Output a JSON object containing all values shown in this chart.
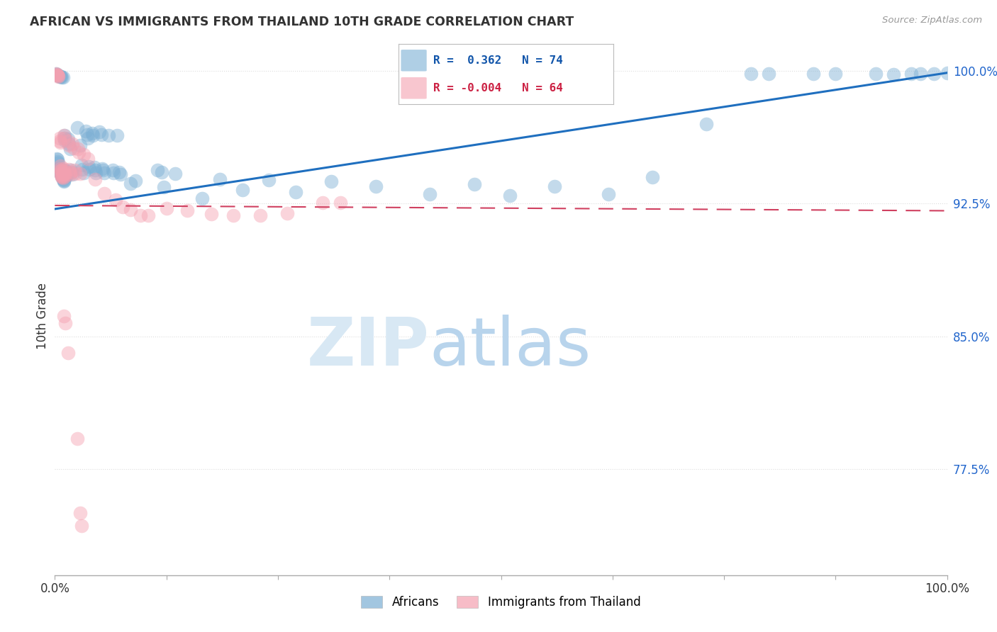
{
  "title": "AFRICAN VS IMMIGRANTS FROM THAILAND 10TH GRADE CORRELATION CHART",
  "source": "Source: ZipAtlas.com",
  "ylabel": "10th Grade",
  "xlim": [
    0.0,
    1.0
  ],
  "ylim": [
    0.715,
    1.008
  ],
  "yticks": [
    0.775,
    0.85,
    0.925,
    1.0
  ],
  "ytick_labels": [
    "77.5%",
    "85.0%",
    "92.5%",
    "100.0%"
  ],
  "legend_blue_r": "0.362",
  "legend_blue_n": "74",
  "legend_pink_r": "-0.004",
  "legend_pink_n": "64",
  "legend_blue_label": "Africans",
  "legend_pink_label": "Immigrants from Thailand",
  "blue_color": "#7BAFD4",
  "pink_color": "#F4A0B0",
  "line_blue_color": "#1F6FBF",
  "line_pink_color": "#D04060",
  "watermark_zip": "ZIP",
  "watermark_atlas": "atlas",
  "blue_line": [
    [
      0.0,
      0.922
    ],
    [
      1.0,
      0.999
    ]
  ],
  "pink_line": [
    [
      0.0,
      0.924
    ],
    [
      1.0,
      0.921
    ]
  ],
  "blue_dots": [
    [
      0.001,
      0.9985
    ],
    [
      0.002,
      0.998
    ],
    [
      0.003,
      0.9975
    ],
    [
      0.004,
      0.9975
    ],
    [
      0.005,
      0.997
    ],
    [
      0.006,
      0.997
    ],
    [
      0.007,
      0.997
    ],
    [
      0.008,
      0.9965
    ],
    [
      0.009,
      0.9965
    ],
    [
      0.002,
      0.9505
    ],
    [
      0.003,
      0.95
    ],
    [
      0.003,
      0.949
    ],
    [
      0.004,
      0.948
    ],
    [
      0.005,
      0.945
    ],
    [
      0.006,
      0.944
    ],
    [
      0.006,
      0.9435
    ],
    [
      0.007,
      0.942
    ],
    [
      0.007,
      0.9415
    ],
    [
      0.008,
      0.941
    ],
    [
      0.008,
      0.9405
    ],
    [
      0.009,
      0.9395
    ],
    [
      0.009,
      0.939
    ],
    [
      0.01,
      0.9385
    ],
    [
      0.01,
      0.938
    ],
    [
      0.01,
      0.9375
    ],
    [
      0.011,
      0.9635
    ],
    [
      0.011,
      0.962
    ],
    [
      0.011,
      0.961
    ],
    [
      0.011,
      0.944
    ],
    [
      0.012,
      0.9435
    ],
    [
      0.012,
      0.943
    ],
    [
      0.012,
      0.942
    ],
    [
      0.013,
      0.9415
    ],
    [
      0.013,
      0.941
    ],
    [
      0.015,
      0.9615
    ],
    [
      0.016,
      0.959
    ],
    [
      0.017,
      0.956
    ],
    [
      0.018,
      0.944
    ],
    [
      0.019,
      0.943
    ],
    [
      0.02,
      0.9415
    ],
    [
      0.025,
      0.968
    ],
    [
      0.028,
      0.958
    ],
    [
      0.03,
      0.947
    ],
    [
      0.031,
      0.9445
    ],
    [
      0.032,
      0.9425
    ],
    [
      0.035,
      0.966
    ],
    [
      0.036,
      0.964
    ],
    [
      0.037,
      0.962
    ],
    [
      0.038,
      0.946
    ],
    [
      0.039,
      0.9445
    ],
    [
      0.042,
      0.965
    ],
    [
      0.043,
      0.9635
    ],
    [
      0.044,
      0.9455
    ],
    [
      0.045,
      0.944
    ],
    [
      0.046,
      0.9425
    ],
    [
      0.05,
      0.9655
    ],
    [
      0.052,
      0.964
    ],
    [
      0.053,
      0.945
    ],
    [
      0.054,
      0.944
    ],
    [
      0.055,
      0.9425
    ],
    [
      0.06,
      0.9635
    ],
    [
      0.065,
      0.944
    ],
    [
      0.066,
      0.9425
    ],
    [
      0.07,
      0.9635
    ],
    [
      0.072,
      0.943
    ],
    [
      0.074,
      0.9415
    ],
    [
      0.085,
      0.9365
    ],
    [
      0.09,
      0.938
    ],
    [
      0.115,
      0.944
    ],
    [
      0.12,
      0.943
    ],
    [
      0.122,
      0.9345
    ],
    [
      0.135,
      0.942
    ],
    [
      0.165,
      0.928
    ],
    [
      0.185,
      0.939
    ],
    [
      0.21,
      0.933
    ],
    [
      0.24,
      0.9385
    ],
    [
      0.27,
      0.9315
    ],
    [
      0.31,
      0.9375
    ],
    [
      0.36,
      0.935
    ],
    [
      0.42,
      0.9305
    ],
    [
      0.47,
      0.936
    ],
    [
      0.51,
      0.9295
    ],
    [
      0.56,
      0.935
    ],
    [
      0.62,
      0.9305
    ],
    [
      0.67,
      0.94
    ],
    [
      0.73,
      0.97
    ],
    [
      0.78,
      0.9985
    ],
    [
      0.8,
      0.9985
    ],
    [
      0.85,
      0.9985
    ],
    [
      0.875,
      0.9985
    ],
    [
      0.92,
      0.9985
    ],
    [
      0.94,
      0.998
    ],
    [
      0.96,
      0.9985
    ],
    [
      0.97,
      0.9985
    ],
    [
      0.985,
      0.9985
    ],
    [
      1.0,
      0.999
    ]
  ],
  "pink_dots": [
    [
      0.001,
      0.9985
    ],
    [
      0.002,
      0.9982
    ],
    [
      0.003,
      0.9978
    ],
    [
      0.003,
      0.9975
    ],
    [
      0.004,
      0.9972
    ],
    [
      0.004,
      0.9968
    ],
    [
      0.005,
      0.962
    ],
    [
      0.005,
      0.9605
    ],
    [
      0.006,
      0.9595
    ],
    [
      0.006,
      0.9465
    ],
    [
      0.006,
      0.945
    ],
    [
      0.007,
      0.944
    ],
    [
      0.007,
      0.9435
    ],
    [
      0.007,
      0.942
    ],
    [
      0.007,
      0.9415
    ],
    [
      0.008,
      0.941
    ],
    [
      0.008,
      0.9405
    ],
    [
      0.008,
      0.94
    ],
    [
      0.009,
      0.9395
    ],
    [
      0.01,
      0.9635
    ],
    [
      0.01,
      0.962
    ],
    [
      0.01,
      0.945
    ],
    [
      0.01,
      0.9435
    ],
    [
      0.011,
      0.942
    ],
    [
      0.011,
      0.9415
    ],
    [
      0.011,
      0.9405
    ],
    [
      0.015,
      0.9605
    ],
    [
      0.016,
      0.958
    ],
    [
      0.016,
      0.9445
    ],
    [
      0.017,
      0.943
    ],
    [
      0.017,
      0.9415
    ],
    [
      0.02,
      0.959
    ],
    [
      0.021,
      0.9565
    ],
    [
      0.022,
      0.944
    ],
    [
      0.023,
      0.942
    ],
    [
      0.026,
      0.956
    ],
    [
      0.027,
      0.954
    ],
    [
      0.028,
      0.942
    ],
    [
      0.032,
      0.953
    ],
    [
      0.037,
      0.9505
    ],
    [
      0.045,
      0.939
    ],
    [
      0.055,
      0.931
    ],
    [
      0.068,
      0.927
    ],
    [
      0.076,
      0.923
    ],
    [
      0.085,
      0.9215
    ],
    [
      0.096,
      0.9185
    ],
    [
      0.105,
      0.9185
    ],
    [
      0.125,
      0.9225
    ],
    [
      0.148,
      0.921
    ],
    [
      0.175,
      0.919
    ],
    [
      0.2,
      0.9185
    ],
    [
      0.23,
      0.9185
    ],
    [
      0.26,
      0.9195
    ],
    [
      0.3,
      0.9255
    ],
    [
      0.32,
      0.9255
    ],
    [
      0.01,
      0.8615
    ],
    [
      0.012,
      0.8575
    ],
    [
      0.015,
      0.8405
    ],
    [
      0.025,
      0.792
    ],
    [
      0.028,
      0.75
    ],
    [
      0.03,
      0.743
    ]
  ]
}
